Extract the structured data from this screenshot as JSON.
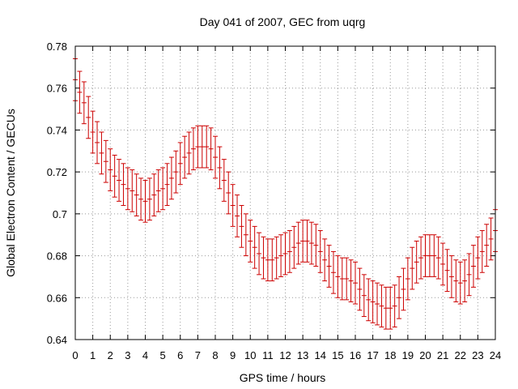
{
  "chart_data": {
    "type": "scatter",
    "title": "Day 041 of 2007, GEC from uqrg",
    "xlabel": "GPS time / hours",
    "ylabel": "Global Electron Content / GECUs",
    "xlim": [
      0,
      24
    ],
    "ylim": [
      0.64,
      0.78
    ],
    "xticks": [
      "0",
      "1",
      "2",
      "3",
      "4",
      "5",
      "6",
      "7",
      "8",
      "9",
      "10",
      "11",
      "12",
      "13",
      "14",
      "15",
      "16",
      "17",
      "18",
      "19",
      "20",
      "21",
      "22",
      "23",
      "24"
    ],
    "yticks": [
      "0.64",
      "0.66",
      "0.68",
      "0.7",
      "0.72",
      "0.74",
      "0.76",
      "0.78"
    ],
    "grid": true,
    "error_bars": true,
    "color": "#cc0000",
    "series": [
      {
        "x": [
          0.0,
          0.25,
          0.5,
          0.75,
          1.0,
          1.25,
          1.5,
          1.75,
          2.0,
          2.25,
          2.5,
          2.75,
          3.0,
          3.25,
          3.5,
          3.75,
          4.0,
          4.25,
          4.5,
          4.75,
          5.0,
          5.25,
          5.5,
          5.75,
          6.0,
          6.25,
          6.5,
          6.75,
          7.0,
          7.25,
          7.5,
          7.75,
          8.0,
          8.25,
          8.5,
          8.75,
          9.0,
          9.25,
          9.5,
          9.75,
          10.0,
          10.25,
          10.5,
          10.75,
          11.0,
          11.25,
          11.5,
          11.75,
          12.0,
          12.25,
          12.5,
          12.75,
          13.0,
          13.25,
          13.5,
          13.75,
          14.0,
          14.25,
          14.5,
          14.75,
          15.0,
          15.25,
          15.5,
          15.75,
          16.0,
          16.25,
          16.5,
          16.75,
          17.0,
          17.25,
          17.5,
          17.75,
          18.0,
          18.25,
          18.5,
          18.75,
          19.0,
          19.25,
          19.5,
          19.75,
          20.0,
          20.25,
          20.5,
          20.75,
          21.0,
          21.25,
          21.5,
          21.75,
          22.0,
          22.25,
          22.5,
          22.75,
          23.0,
          23.25,
          23.5,
          23.75,
          24.0
        ],
        "y": [
          0.764,
          0.758,
          0.753,
          0.746,
          0.739,
          0.734,
          0.729,
          0.725,
          0.721,
          0.718,
          0.716,
          0.714,
          0.712,
          0.711,
          0.709,
          0.707,
          0.706,
          0.707,
          0.709,
          0.711,
          0.712,
          0.714,
          0.717,
          0.72,
          0.724,
          0.727,
          0.729,
          0.731,
          0.732,
          0.732,
          0.732,
          0.731,
          0.727,
          0.722,
          0.716,
          0.71,
          0.704,
          0.699,
          0.694,
          0.69,
          0.687,
          0.684,
          0.681,
          0.679,
          0.678,
          0.678,
          0.679,
          0.68,
          0.681,
          0.682,
          0.684,
          0.686,
          0.687,
          0.687,
          0.686,
          0.685,
          0.682,
          0.678,
          0.675,
          0.672,
          0.67,
          0.669,
          0.669,
          0.668,
          0.667,
          0.664,
          0.661,
          0.659,
          0.658,
          0.657,
          0.656,
          0.655,
          0.655,
          0.656,
          0.66,
          0.664,
          0.669,
          0.674,
          0.677,
          0.679,
          0.68,
          0.68,
          0.68,
          0.679,
          0.676,
          0.673,
          0.67,
          0.668,
          0.667,
          0.668,
          0.671,
          0.675,
          0.679,
          0.682,
          0.685,
          0.688,
          0.692
        ],
        "error": 0.01
      }
    ]
  }
}
